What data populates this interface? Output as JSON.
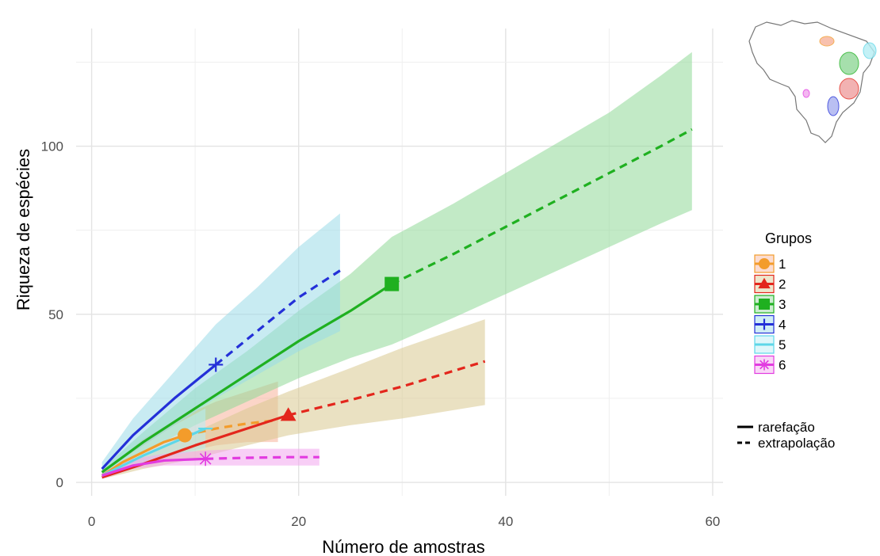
{
  "chart_data": {
    "type": "line",
    "title": "",
    "xlabel": "Número de amostras",
    "ylabel": "Riqueza de espécies",
    "xlim": [
      -1.5,
      61
    ],
    "ylim": [
      -4,
      135
    ],
    "x_ticks": [
      0,
      20,
      40,
      60
    ],
    "y_ticks": [
      0,
      50,
      100
    ],
    "grid": true,
    "legend_position": "right",
    "legend_title": "Grupos",
    "linetype_legend": [
      {
        "label": "rarefação",
        "style": "solid"
      },
      {
        "label": "extrapolação",
        "style": "dashed"
      }
    ],
    "series": [
      {
        "name": "1",
        "color": "#F39C2B",
        "band_color": "#F7B29A",
        "marker": "circle",
        "observed": {
          "x": 9,
          "y": 14
        },
        "rarefaction": [
          [
            1,
            2
          ],
          [
            3,
            6
          ],
          [
            5,
            9
          ],
          [
            7,
            12
          ],
          [
            9,
            14
          ]
        ],
        "extrapolation": [
          [
            9,
            14
          ],
          [
            12,
            16
          ],
          [
            15,
            17.5
          ],
          [
            18,
            18.5
          ]
        ],
        "band": [
          [
            1,
            1.5,
            2.5
          ],
          [
            5,
            5,
            13
          ],
          [
            9,
            9,
            20
          ],
          [
            12,
            11,
            24
          ],
          [
            15,
            12,
            27
          ],
          [
            18,
            12,
            30
          ]
        ]
      },
      {
        "name": "2",
        "color": "#E3261C",
        "band_color": "#D9C88F",
        "marker": "triangle",
        "observed": {
          "x": 19,
          "y": 20
        },
        "rarefaction": [
          [
            1,
            1.5
          ],
          [
            5,
            5.5
          ],
          [
            10,
            11
          ],
          [
            15,
            16
          ],
          [
            19,
            20
          ]
        ],
        "extrapolation": [
          [
            19,
            20
          ],
          [
            25,
            24.5
          ],
          [
            30,
            28.5
          ],
          [
            38,
            36
          ]
        ],
        "band": [
          [
            1,
            1,
            2
          ],
          [
            5,
            4,
            8
          ],
          [
            10,
            7,
            15
          ],
          [
            15,
            11,
            22
          ],
          [
            19,
            14,
            27
          ],
          [
            25,
            17,
            34
          ],
          [
            30,
            19,
            40
          ],
          [
            38,
            23,
            48.5
          ]
        ]
      },
      {
        "name": "3",
        "color": "#1FB020",
        "band_color": "#90D898",
        "marker": "square",
        "observed": {
          "x": 29,
          "y": 59
        },
        "rarefaction": [
          [
            1,
            3
          ],
          [
            5,
            12
          ],
          [
            10,
            22
          ],
          [
            15,
            32
          ],
          [
            20,
            42
          ],
          [
            25,
            51
          ],
          [
            29,
            59
          ]
        ],
        "extrapolation": [
          [
            29,
            59
          ],
          [
            35,
            68
          ],
          [
            40,
            76
          ],
          [
            45,
            84
          ],
          [
            50,
            92
          ],
          [
            55,
            100
          ],
          [
            58,
            105
          ]
        ],
        "band": [
          [
            1,
            2,
            4
          ],
          [
            5,
            9,
            15
          ],
          [
            10,
            17,
            28
          ],
          [
            15,
            24,
            39
          ],
          [
            20,
            31,
            51
          ],
          [
            25,
            37,
            62
          ],
          [
            29,
            41,
            73
          ],
          [
            35,
            49,
            83
          ],
          [
            40,
            56,
            92
          ],
          [
            45,
            63,
            101
          ],
          [
            50,
            70,
            110
          ],
          [
            55,
            77,
            121
          ],
          [
            58,
            81,
            128
          ]
        ]
      },
      {
        "name": "4",
        "color": "#2430D8",
        "band_color": "#9ADAE8",
        "marker": "plus",
        "observed": {
          "x": 12,
          "y": 35
        },
        "rarefaction": [
          [
            1,
            4
          ],
          [
            4,
            14
          ],
          [
            8,
            25
          ],
          [
            12,
            35
          ]
        ],
        "extrapolation": [
          [
            12,
            35
          ],
          [
            16,
            45
          ],
          [
            20,
            55
          ],
          [
            24,
            63
          ]
        ],
        "band": [
          [
            1,
            2,
            6
          ],
          [
            4,
            9,
            19
          ],
          [
            8,
            17,
            33
          ],
          [
            12,
            25,
            47
          ],
          [
            16,
            32,
            58
          ],
          [
            20,
            39,
            70
          ],
          [
            24,
            45,
            80
          ]
        ]
      },
      {
        "name": "5",
        "color": "#5DD7E8",
        "band_color": "#B5EEF5",
        "marker": "minus",
        "observed": {
          "x": 11,
          "y": 16
        },
        "rarefaction": [
          [
            1,
            2
          ],
          [
            5,
            8
          ],
          [
            8,
            12
          ],
          [
            11,
            16
          ]
        ],
        "extrapolation": [
          [
            11,
            16
          ]
        ],
        "band": [
          [
            1,
            1,
            3
          ],
          [
            5,
            5,
            11
          ],
          [
            8,
            8,
            17
          ],
          [
            11,
            10,
            22
          ]
        ]
      },
      {
        "name": "6",
        "color": "#E23BE0",
        "band_color": "#F2A6EE",
        "marker": "asterisk",
        "observed": {
          "x": 11,
          "y": 7
        },
        "rarefaction": [
          [
            1,
            2
          ],
          [
            4,
            5
          ],
          [
            7,
            6.5
          ],
          [
            11,
            7
          ]
        ],
        "extrapolation": [
          [
            11,
            7
          ],
          [
            15,
            7.3
          ],
          [
            19,
            7.5
          ],
          [
            22,
            7.5
          ]
        ],
        "band": [
          [
            1,
            1,
            3
          ],
          [
            4,
            4,
            7
          ],
          [
            7,
            5,
            8.5
          ],
          [
            11,
            5,
            9.5
          ],
          [
            15,
            5,
            10
          ],
          [
            19,
            5,
            10
          ],
          [
            22,
            5,
            10
          ]
        ]
      }
    ]
  }
}
